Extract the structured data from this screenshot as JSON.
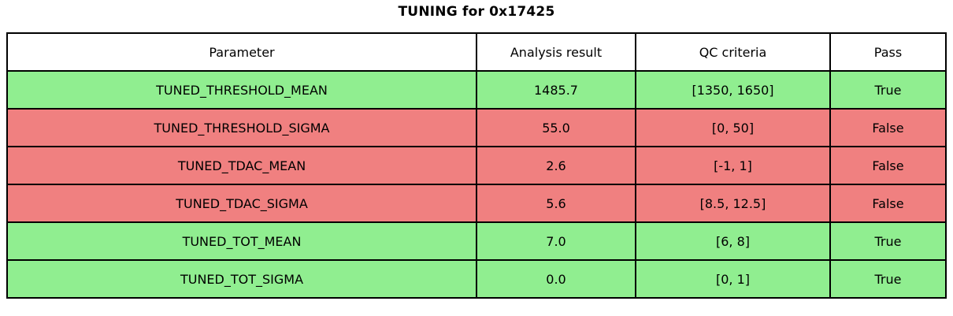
{
  "title": "TUNING for 0x17425",
  "colors": {
    "pass_row_bg": "#90ee90",
    "fail_row_bg": "#f08080",
    "header_bg": "#ffffff",
    "border": "#000000",
    "text": "#000000"
  },
  "chart_data": {
    "type": "table",
    "title": "TUNING for 0x17425",
    "columns": [
      "Parameter",
      "Analysis result",
      "QC criteria",
      "Pass"
    ],
    "rows": [
      {
        "parameter": "TUNED_THRESHOLD_MEAN",
        "analysis_result": "1485.7",
        "qc_criteria": "[1350, 1650]",
        "pass": "True",
        "status": "pass"
      },
      {
        "parameter": "TUNED_THRESHOLD_SIGMA",
        "analysis_result": "55.0",
        "qc_criteria": "[0, 50]",
        "pass": "False",
        "status": "fail"
      },
      {
        "parameter": "TUNED_TDAC_MEAN",
        "analysis_result": "2.6",
        "qc_criteria": "[-1, 1]",
        "pass": "False",
        "status": "fail"
      },
      {
        "parameter": "TUNED_TDAC_SIGMA",
        "analysis_result": "5.6",
        "qc_criteria": "[8.5, 12.5]",
        "pass": "False",
        "status": "fail"
      },
      {
        "parameter": "TUNED_TOT_MEAN",
        "analysis_result": "7.0",
        "qc_criteria": "[6, 8]",
        "pass": "True",
        "status": "pass"
      },
      {
        "parameter": "TUNED_TOT_SIGMA",
        "analysis_result": "0.0",
        "qc_criteria": "[0, 1]",
        "pass": "True",
        "status": "pass"
      }
    ]
  }
}
